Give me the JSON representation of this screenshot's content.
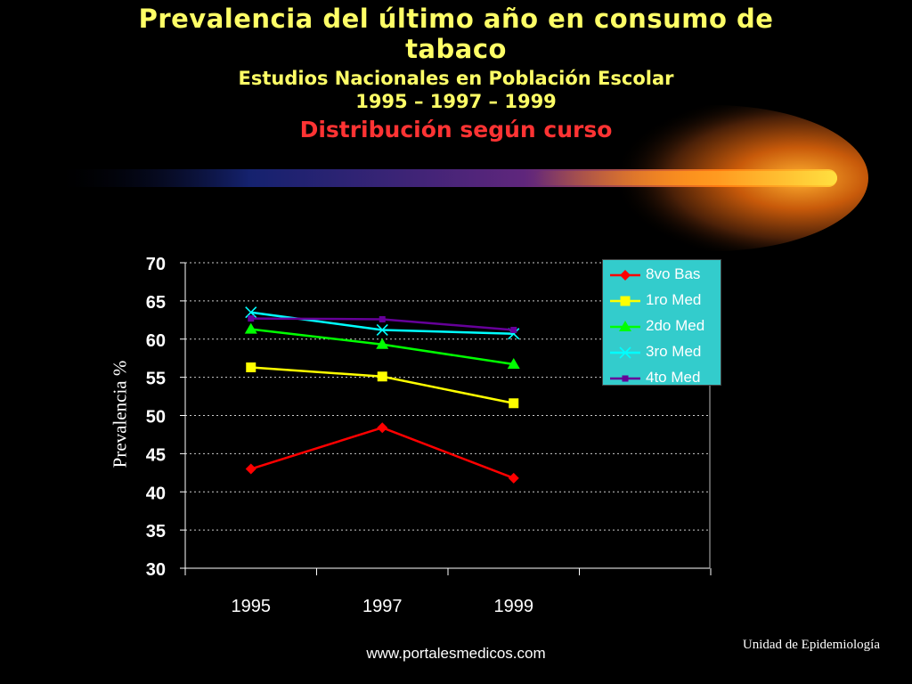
{
  "header": {
    "title": "Prevalencia del último año en consumo de tabaco",
    "subtitle": "Estudios Nacionales en Población Escolar",
    "years": "1995 – 1997 – 1999",
    "distribution": "Distribución según curso"
  },
  "footer": {
    "website": "www.portalesmedicos.com",
    "unit": "Unidad de Epidemiología"
  },
  "colors": {
    "background": "#000000",
    "title": "#ffff66",
    "distribution": "#ff3333",
    "legend_bg": "#33cccc"
  },
  "chart_data": {
    "type": "line",
    "title": "",
    "xlabel": "",
    "ylabel": "Prevalencia %",
    "x": [
      "1995",
      "1997",
      "1999"
    ],
    "ylim": [
      30,
      70
    ],
    "yticks": [
      "30",
      "35",
      "40",
      "45",
      "50",
      "55",
      "60",
      "65",
      "70"
    ],
    "grid": "horizontal dotted",
    "legend_position": "top-right",
    "series": [
      {
        "name": "8vo Bas",
        "values": [
          43.0,
          48.4,
          41.8
        ],
        "color": "#ff0000",
        "marker": "diamond"
      },
      {
        "name": "1ro Med",
        "values": [
          56.3,
          55.1,
          51.6
        ],
        "color": "#ffff00",
        "marker": "square"
      },
      {
        "name": "2do Med",
        "values": [
          61.3,
          59.3,
          56.7
        ],
        "color": "#00ff00",
        "marker": "triangle"
      },
      {
        "name": "3ro Med",
        "values": [
          63.5,
          61.2,
          60.7
        ],
        "color": "#00ffff",
        "marker": "x"
      },
      {
        "name": "4to Med",
        "values": [
          62.7,
          62.6,
          61.2
        ],
        "color": "#660099",
        "marker": "square-small"
      }
    ]
  }
}
